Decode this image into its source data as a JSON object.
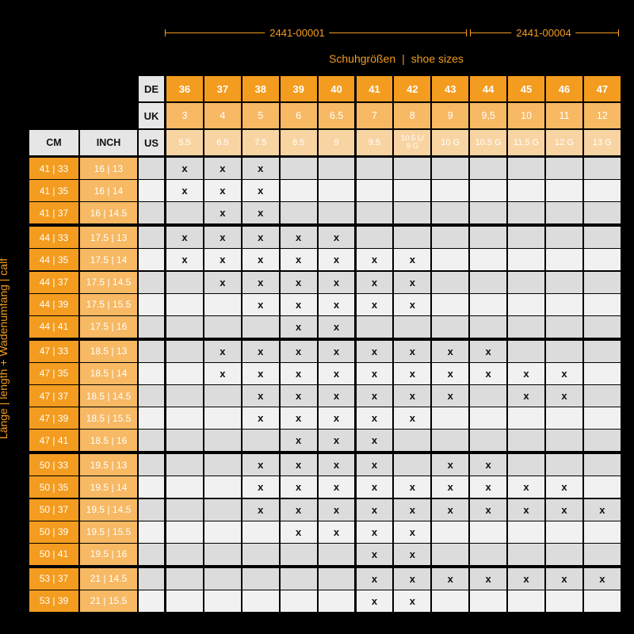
{
  "header": {
    "article_codes": [
      "2441-00001",
      "2441-00004"
    ],
    "title_de": "Schuhgrößen",
    "title_separator": "|",
    "title_en": "shoe sizes"
  },
  "side_label": "Länge  |  length  +  Wadenumfang  |  calf",
  "row_labels": {
    "de": "DE",
    "uk": "UK",
    "us": "US",
    "cm": "CM",
    "inch": "INCH"
  },
  "sizes": {
    "de": [
      "36",
      "37",
      "38",
      "39",
      "40",
      "41",
      "42",
      "43",
      "44",
      "45",
      "46",
      "47"
    ],
    "uk": [
      "3",
      "4",
      "5",
      "6",
      "6.5",
      "7",
      "8",
      "9",
      "9,5",
      "10",
      "11",
      "12"
    ],
    "us": [
      "5.5",
      "6.5",
      "7.5",
      "8.5",
      "9",
      "9.5",
      "10.5 L/\n9 G",
      "10 G",
      "10.5 G",
      "11.5 G",
      "12 G",
      "13 G"
    ]
  },
  "mark": "x",
  "colors": {
    "accent": "#f39c1f",
    "uk": "#f7b964",
    "us": "#f9d4a3",
    "row_dark": "#dcdcdc",
    "row_light": "#f1f1f1"
  },
  "groups": [
    {
      "rows": [
        {
          "cm": "41 | 33",
          "inch": "16 | 13",
          "marks": [
            1,
            1,
            1,
            0,
            0,
            0,
            0,
            0,
            0,
            0,
            0,
            0
          ]
        },
        {
          "cm": "41 | 35",
          "inch": "16 | 14",
          "marks": [
            1,
            1,
            1,
            0,
            0,
            0,
            0,
            0,
            0,
            0,
            0,
            0
          ]
        },
        {
          "cm": "41 | 37",
          "inch": "16 | 14.5",
          "marks": [
            0,
            1,
            1,
            0,
            0,
            0,
            0,
            0,
            0,
            0,
            0,
            0
          ]
        }
      ]
    },
    {
      "rows": [
        {
          "cm": "44 | 33",
          "inch": "17.5 | 13",
          "marks": [
            1,
            1,
            1,
            1,
            1,
            0,
            0,
            0,
            0,
            0,
            0,
            0
          ]
        },
        {
          "cm": "44 | 35",
          "inch": "17.5 | 14",
          "marks": [
            1,
            1,
            1,
            1,
            1,
            1,
            1,
            0,
            0,
            0,
            0,
            0
          ]
        },
        {
          "cm": "44 | 37",
          "inch": "17.5 | 14.5",
          "marks": [
            0,
            1,
            1,
            1,
            1,
            1,
            1,
            0,
            0,
            0,
            0,
            0
          ]
        },
        {
          "cm": "44 | 39",
          "inch": "17.5 | 15.5",
          "marks": [
            0,
            0,
            1,
            1,
            1,
            1,
            1,
            0,
            0,
            0,
            0,
            0
          ]
        },
        {
          "cm": "44 | 41",
          "inch": "17.5 | 16",
          "marks": [
            0,
            0,
            0,
            1,
            1,
            0,
            0,
            0,
            0,
            0,
            0,
            0
          ]
        }
      ]
    },
    {
      "rows": [
        {
          "cm": "47 | 33",
          "inch": "18.5 | 13",
          "marks": [
            0,
            1,
            1,
            1,
            1,
            1,
            1,
            1,
            1,
            0,
            0,
            0
          ]
        },
        {
          "cm": "47 | 35",
          "inch": "18.5 | 14",
          "marks": [
            0,
            1,
            1,
            1,
            1,
            1,
            1,
            1,
            1,
            1,
            1,
            0
          ]
        },
        {
          "cm": "47 | 37",
          "inch": "18.5 | 14.5",
          "marks": [
            0,
            0,
            1,
            1,
            1,
            1,
            1,
            1,
            0,
            1,
            1,
            0
          ]
        },
        {
          "cm": "47 | 39",
          "inch": "18.5 | 15.5",
          "marks": [
            0,
            0,
            1,
            1,
            1,
            1,
            1,
            0,
            0,
            0,
            0,
            0
          ]
        },
        {
          "cm": "47 | 41",
          "inch": "18.5 | 16",
          "marks": [
            0,
            0,
            0,
            1,
            1,
            1,
            0,
            0,
            0,
            0,
            0,
            0
          ]
        }
      ]
    },
    {
      "rows": [
        {
          "cm": "50 | 33",
          "inch": "19.5 | 13",
          "marks": [
            0,
            0,
            1,
            1,
            1,
            1,
            0,
            1,
            1,
            0,
            0,
            0
          ]
        },
        {
          "cm": "50 | 35",
          "inch": "19.5 | 14",
          "marks": [
            0,
            0,
            1,
            1,
            1,
            1,
            1,
            1,
            1,
            1,
            1,
            0
          ]
        },
        {
          "cm": "50 | 37",
          "inch": "19.5 | 14.5",
          "marks": [
            0,
            0,
            1,
            1,
            1,
            1,
            1,
            1,
            1,
            1,
            1,
            1
          ]
        },
        {
          "cm": "50 | 39",
          "inch": "19.5 | 15.5",
          "marks": [
            0,
            0,
            0,
            1,
            1,
            1,
            1,
            0,
            0,
            0,
            0,
            0
          ]
        },
        {
          "cm": "50 | 41",
          "inch": "19.5 | 16",
          "marks": [
            0,
            0,
            0,
            0,
            0,
            1,
            1,
            0,
            0,
            0,
            0,
            0
          ]
        }
      ]
    },
    {
      "rows": [
        {
          "cm": "53 | 37",
          "inch": "21 | 14.5",
          "marks": [
            0,
            0,
            0,
            0,
            0,
            1,
            1,
            1,
            1,
            1,
            1,
            1
          ]
        },
        {
          "cm": "53 | 39",
          "inch": "21 | 15.5",
          "marks": [
            0,
            0,
            0,
            0,
            0,
            1,
            1,
            0,
            0,
            0,
            0,
            0
          ]
        }
      ]
    }
  ]
}
